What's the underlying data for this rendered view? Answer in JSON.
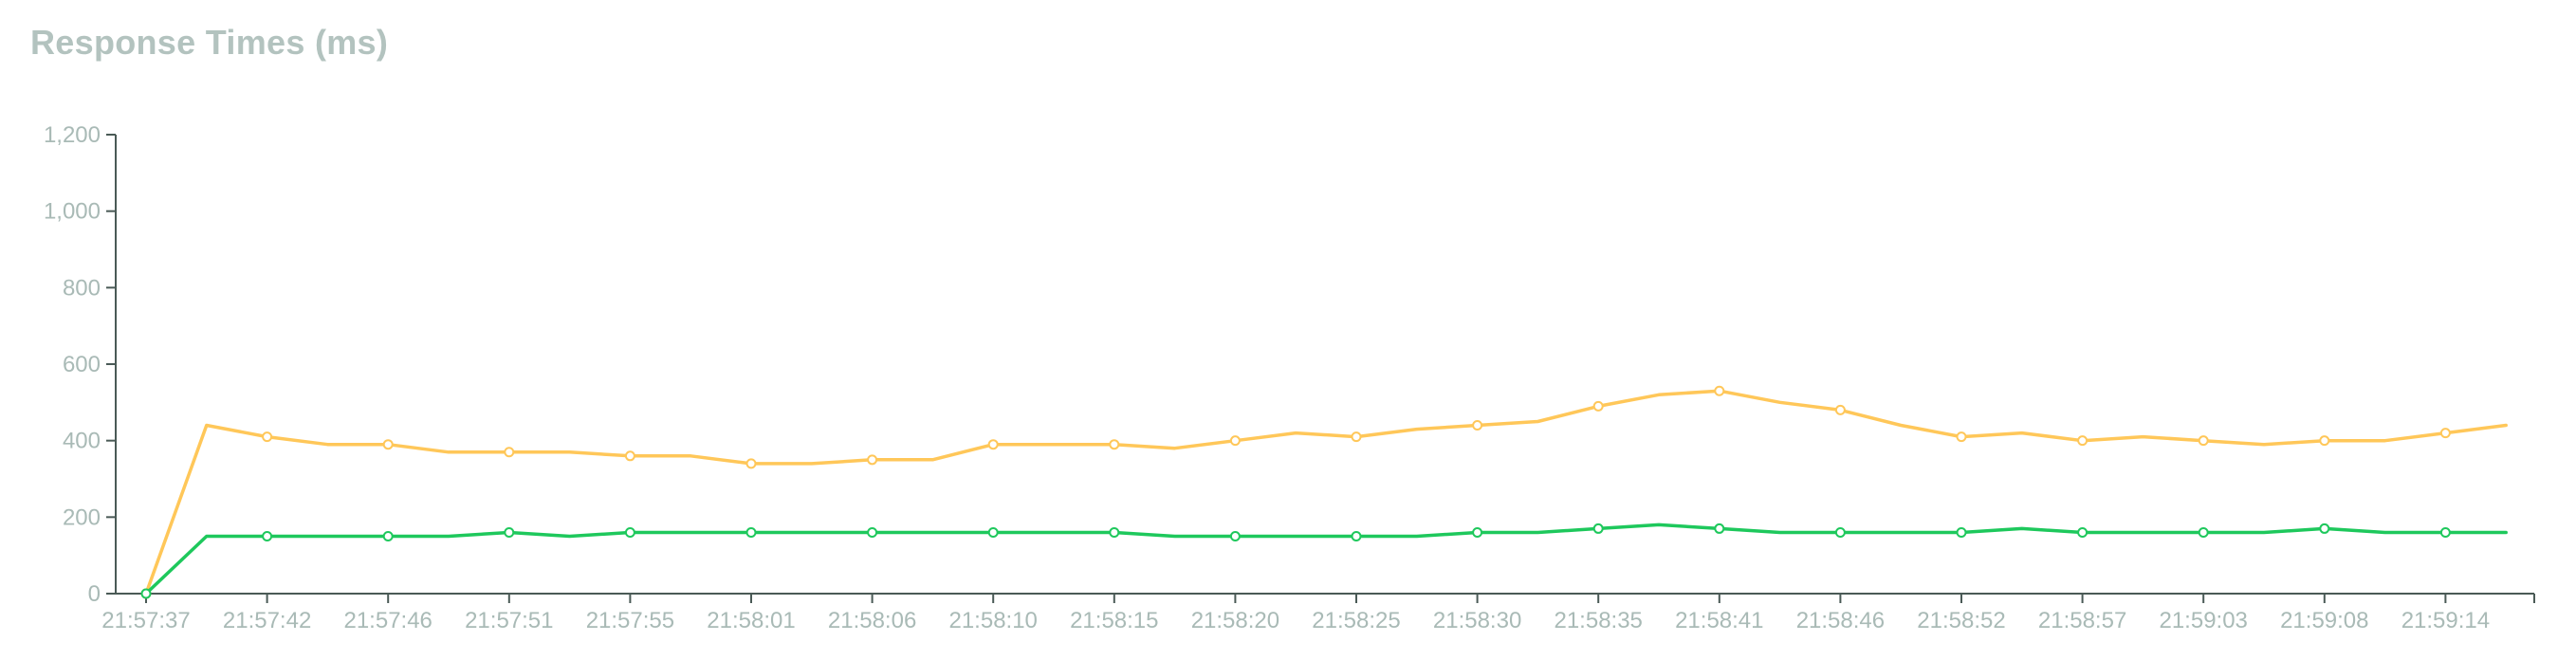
{
  "chart_data": {
    "type": "line",
    "title": "Response Times (ms)",
    "xlabel": "",
    "ylabel": "",
    "ylim": [
      0,
      1200
    ],
    "yticks": [
      0,
      200,
      400,
      600,
      800,
      1000,
      1200
    ],
    "ytick_labels": [
      "0",
      "200",
      "400",
      "600",
      "800",
      "1,000",
      "1,200"
    ],
    "xtick_labels": [
      "21:57:37",
      "21:57:42",
      "21:57:46",
      "21:57:51",
      "21:57:55",
      "21:58:01",
      "21:58:06",
      "21:58:10",
      "21:58:15",
      "21:58:20",
      "21:58:25",
      "21:58:30",
      "21:58:35",
      "21:58:41",
      "21:58:46",
      "21:58:52",
      "21:58:57",
      "21:59:03",
      "21:59:08",
      "21:59:14"
    ],
    "grid": false,
    "legend": "none",
    "series": [
      {
        "color": "#ffc759",
        "values": [
          0,
          440,
          410,
          390,
          390,
          370,
          370,
          370,
          360,
          360,
          340,
          340,
          350,
          350,
          390,
          390,
          390,
          380,
          400,
          420,
          410,
          430,
          440,
          450,
          490,
          520,
          530,
          500,
          480,
          440,
          410,
          420,
          400,
          410,
          400,
          390,
          400,
          400,
          420,
          440
        ]
      },
      {
        "color": "#1ec85c",
        "values": [
          0,
          150,
          150,
          150,
          150,
          150,
          160,
          150,
          160,
          160,
          160,
          160,
          160,
          160,
          160,
          160,
          160,
          150,
          150,
          150,
          150,
          150,
          160,
          160,
          170,
          180,
          170,
          160,
          160,
          160,
          160,
          170,
          160,
          160,
          160,
          160,
          170,
          160,
          160,
          160
        ]
      }
    ],
    "axis_color": "#4a5a56",
    "tick_label_color": "#a9bab6"
  }
}
